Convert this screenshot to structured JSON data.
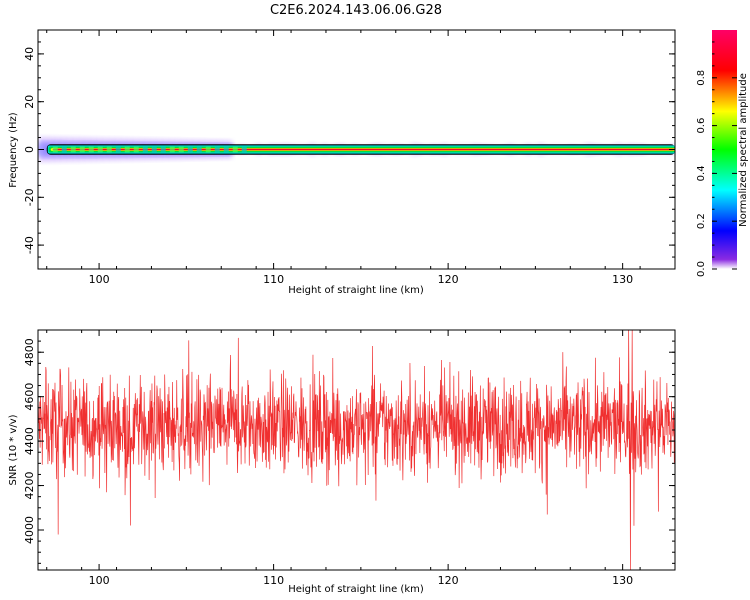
{
  "title": "C2E6.2024.143.06.06.G28",
  "colors": {
    "snr_line": "#f03030",
    "dominant_band": "#e8003a",
    "frame": "#000000"
  },
  "chart_data": [
    {
      "type": "heatmap",
      "name": "spectrogram",
      "xlabel": "Height of straight line (km)",
      "ylabel": "Frequency (Hz)",
      "xlim": [
        96.5,
        133
      ],
      "ylim": [
        -50,
        50
      ],
      "xticks": [
        100,
        110,
        120,
        130
      ],
      "yticks": [
        -40,
        -20,
        0,
        20,
        40
      ],
      "grid": false,
      "colorbar": {
        "label": "Normalized spectral amplitude",
        "range": [
          0,
          1
        ],
        "ticks": [
          0.0,
          0.2,
          0.4,
          0.6,
          0.8
        ],
        "colormap": "hsv"
      },
      "dominant_frequency_hz": 0,
      "signal_start_km": 97.0,
      "spread_region_end_km": 107.5
    },
    {
      "type": "line",
      "name": "snr",
      "xlabel": "Height of straight line (km)",
      "ylabel": "SNR (10 * v/v)",
      "xlim": [
        96.5,
        133
      ],
      "ylim": [
        3820,
        4900
      ],
      "xticks": [
        100,
        110,
        120,
        130
      ],
      "yticks": [
        4000,
        4200,
        4400,
        4600,
        4800
      ],
      "grid": false,
      "mean": 4470,
      "noise_std": 110,
      "outliers": [
        {
          "x": 130.35,
          "y": 4910
        },
        {
          "x": 130.55,
          "y": 4910
        },
        {
          "x": 130.45,
          "y": 3820
        },
        {
          "x": 97.65,
          "y": 3980
        },
        {
          "x": 101.8,
          "y": 4020
        }
      ]
    }
  ]
}
